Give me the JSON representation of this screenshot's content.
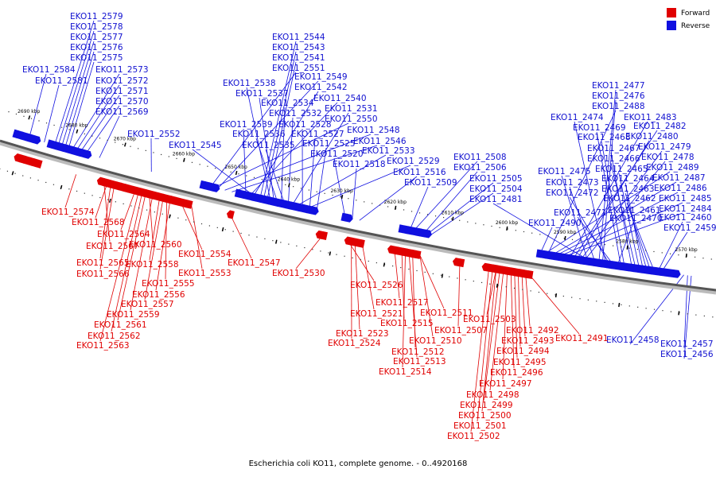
{
  "caption": "Escherichia coli KO11, complete genome. - 0..4920168",
  "legend": [
    {
      "label": "Forward",
      "color": "#e00000"
    },
    {
      "label": "Reverse",
      "color": "#1010e0"
    }
  ],
  "colors": {
    "forward": "#e00000",
    "reverse": "#1010e0",
    "backbone": "#555555"
  },
  "ticks": [
    "2690 kbp",
    "2680 kbp",
    "2670 kbp",
    "2660 kbp",
    "2650 kbp",
    "2640 kbp",
    "2630 kbp",
    "2620 kbp",
    "2610 kbp",
    "2600 kbp",
    "2590 kbp",
    "2580 kbp",
    "2570 kbp"
  ],
  "reverse_genes": [
    {
      "name": "EKO11_2579",
      "t": 0.075
    },
    {
      "name": "EKO11_2578",
      "t": 0.08
    },
    {
      "name": "EKO11_2577",
      "t": 0.085
    },
    {
      "name": "EKO11_2576",
      "t": 0.09
    },
    {
      "name": "EKO11_2575",
      "t": 0.095
    },
    {
      "name": "EKO11_2584",
      "t": 0.038
    },
    {
      "name": "EKO11_2573",
      "t": 0.1
    },
    {
      "name": "EKO11_2581",
      "t": 0.06
    },
    {
      "name": "EKO11_2572",
      "t": 0.106
    },
    {
      "name": "EKO11_2571",
      "t": 0.112
    },
    {
      "name": "EKO11_2570",
      "t": 0.12
    },
    {
      "name": "EKO11_2569",
      "t": 0.14
    },
    {
      "name": "EKO11_2552",
      "t": 0.215
    },
    {
      "name": "EKO11_2545",
      "t": 0.365
    },
    {
      "name": "EKO11_2544",
      "t": 0.37
    },
    {
      "name": "EKO11_2543",
      "t": 0.375
    },
    {
      "name": "EKO11_2541",
      "t": 0.38
    },
    {
      "name": "EKO11_2551",
      "t": 0.3
    },
    {
      "name": "EKO11_2538",
      "t": 0.385
    },
    {
      "name": "EKO11_2549",
      "t": 0.31
    },
    {
      "name": "EKO11_2537",
      "t": 0.39
    },
    {
      "name": "EKO11_2542",
      "t": 0.36
    },
    {
      "name": "EKO11_2534",
      "t": 0.4
    },
    {
      "name": "EKO11_2540",
      "t": 0.355
    },
    {
      "name": "EKO11_2532",
      "t": 0.41
    },
    {
      "name": "EKO11_2531",
      "t": 0.415
    },
    {
      "name": "EKO11_2550",
      "t": 0.305
    },
    {
      "name": "EKO11_2539",
      "t": 0.35
    },
    {
      "name": "EKO11_2528",
      "t": 0.43
    },
    {
      "name": "EKO11_2548",
      "t": 0.32
    },
    {
      "name": "EKO11_2536",
      "t": 0.395
    },
    {
      "name": "EKO11_2527",
      "t": 0.44
    },
    {
      "name": "EKO11_2546",
      "t": 0.33
    },
    {
      "name": "EKO11_2535",
      "t": 0.405
    },
    {
      "name": "EKO11_2525",
      "t": 0.45
    },
    {
      "name": "EKO11_2533",
      "t": 0.42
    },
    {
      "name": "EKO11_2520",
      "t": 0.49
    },
    {
      "name": "EKO11_2529",
      "t": 0.435
    },
    {
      "name": "EKO11_2518",
      "t": 0.5
    },
    {
      "name": "EKO11_2516",
      "t": 0.51
    },
    {
      "name": "EKO11_2509",
      "t": 0.58
    },
    {
      "name": "EKO11_2508",
      "t": 0.585
    },
    {
      "name": "EKO11_2506",
      "t": 0.6
    },
    {
      "name": "EKO11_2505",
      "t": 0.605
    },
    {
      "name": "EKO11_2504",
      "t": 0.61
    },
    {
      "name": "EKO11_2481",
      "t": 0.83
    },
    {
      "name": "EKO11_2477",
      "t": 0.84
    },
    {
      "name": "EKO11_2476",
      "t": 0.845
    },
    {
      "name": "EKO11_2488",
      "t": 0.77
    },
    {
      "name": "EKO11_2474",
      "t": 0.85
    },
    {
      "name": "EKO11_2483",
      "t": 0.8
    },
    {
      "name": "EKO11_2469",
      "t": 0.87
    },
    {
      "name": "EKO11_2482",
      "t": 0.805
    },
    {
      "name": "EKO11_2468",
      "t": 0.875
    },
    {
      "name": "EKO11_2480",
      "t": 0.81
    },
    {
      "name": "EKO11_2467",
      "t": 0.885
    },
    {
      "name": "EKO11_2479",
      "t": 0.815
    },
    {
      "name": "EKO11_2466",
      "t": 0.89
    },
    {
      "name": "EKO11_2478",
      "t": 0.82
    },
    {
      "name": "EKO11_2465",
      "t": 0.895
    },
    {
      "name": "EKO11_2489",
      "t": 0.765
    },
    {
      "name": "EKO11_2475",
      "t": 0.825
    },
    {
      "name": "EKO11_2464",
      "t": 0.9
    },
    {
      "name": "EKO11_2487",
      "t": 0.775
    },
    {
      "name": "EKO11_2473",
      "t": 0.835
    },
    {
      "name": "EKO11_2463",
      "t": 0.905
    },
    {
      "name": "EKO11_2486",
      "t": 0.78
    },
    {
      "name": "EKO11_2472",
      "t": 0.855
    },
    {
      "name": "EKO11_2462",
      "t": 0.91
    },
    {
      "name": "EKO11_2485",
      "t": 0.785
    },
    {
      "name": "EKO11_2471",
      "t": 0.86
    },
    {
      "name": "EKO11_2461",
      "t": 0.915
    },
    {
      "name": "EKO11_2484",
      "t": 0.79
    },
    {
      "name": "EKO11_2470",
      "t": 0.865
    },
    {
      "name": "EKO11_2460",
      "t": 0.92
    },
    {
      "name": "EKO11_2490",
      "t": 0.76
    },
    {
      "name": "EKO11_2459",
      "t": 0.925
    },
    {
      "name": "EKO11_2458",
      "t": 0.955
    },
    {
      "name": "EKO11_2457",
      "t": 0.96
    },
    {
      "name": "EKO11_2456",
      "t": 0.965
    }
  ],
  "forward_genes": [
    {
      "name": "EKO11_2574",
      "t": 0.115
    },
    {
      "name": "EKO11_2568",
      "t": 0.16
    },
    {
      "name": "EKO11_2564",
      "t": 0.2
    },
    {
      "name": "EKO11_2560",
      "t": 0.22
    },
    {
      "name": "EKO11_2567",
      "t": 0.155
    },
    {
      "name": "EKO11_2554",
      "t": 0.265
    },
    {
      "name": "EKO11_2565",
      "t": 0.165
    },
    {
      "name": "EKO11_2558",
      "t": 0.235
    },
    {
      "name": "EKO11_2547",
      "t": 0.335
    },
    {
      "name": "EKO11_2553",
      "t": 0.28
    },
    {
      "name": "EKO11_2566",
      "t": 0.17
    },
    {
      "name": "EKO11_2530",
      "t": 0.465
    },
    {
      "name": "EKO11_2555",
      "t": 0.245
    },
    {
      "name": "EKO11_2526",
      "t": 0.5
    },
    {
      "name": "EKO11_2556",
      "t": 0.25
    },
    {
      "name": "EKO11_2557",
      "t": 0.24
    },
    {
      "name": "EKO11_2517",
      "t": 0.565
    },
    {
      "name": "EKO11_2559",
      "t": 0.225
    },
    {
      "name": "EKO11_2521",
      "t": 0.52
    },
    {
      "name": "EKO11_2511",
      "t": 0.6
    },
    {
      "name": "EKO11_2503",
      "t": 0.705
    },
    {
      "name": "EKO11_2561",
      "t": 0.215
    },
    {
      "name": "EKO11_2515",
      "t": 0.575
    },
    {
      "name": "EKO11_2507",
      "t": 0.655
    },
    {
      "name": "EKO11_2492",
      "t": 0.745
    },
    {
      "name": "EKO11_2491",
      "t": 0.75
    },
    {
      "name": "EKO11_2562",
      "t": 0.21
    },
    {
      "name": "EKO11_2523",
      "t": 0.51
    },
    {
      "name": "EKO11_2510",
      "t": 0.6
    },
    {
      "name": "EKO11_2493",
      "t": 0.74
    },
    {
      "name": "EKO11_2563",
      "t": 0.205
    },
    {
      "name": "EKO11_2524",
      "t": 0.505
    },
    {
      "name": "EKO11_2512",
      "t": 0.59
    },
    {
      "name": "EKO11_2494",
      "t": 0.735
    },
    {
      "name": "EKO11_2513",
      "t": 0.585
    },
    {
      "name": "EKO11_2495",
      "t": 0.73
    },
    {
      "name": "EKO11_2514",
      "t": 0.58
    },
    {
      "name": "EKO11_2496",
      "t": 0.725
    },
    {
      "name": "EKO11_2497",
      "t": 0.72
    },
    {
      "name": "EKO11_2498",
      "t": 0.715
    },
    {
      "name": "EKO11_2499",
      "t": 0.71
    },
    {
      "name": "EKO11_2500",
      "t": 0.705
    },
    {
      "name": "EKO11_2501",
      "t": 0.7
    },
    {
      "name": "EKO11_2502",
      "t": 0.695
    }
  ]
}
